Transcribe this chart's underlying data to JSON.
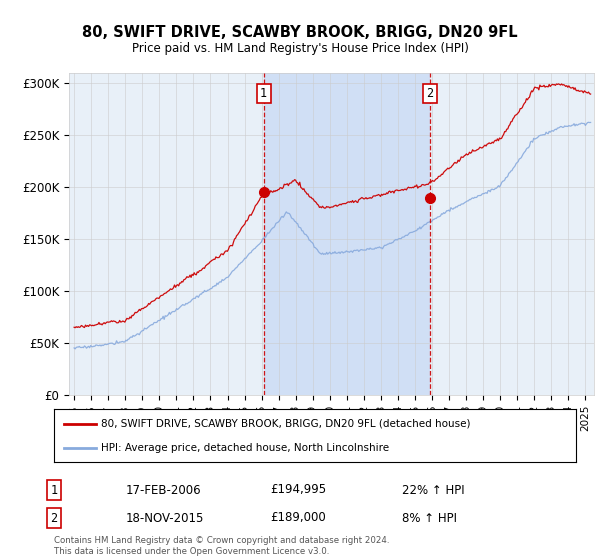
{
  "title": "80, SWIFT DRIVE, SCAWBY BROOK, BRIGG, DN20 9FL",
  "subtitle": "Price paid vs. HM Land Registry's House Price Index (HPI)",
  "ylabel_ticks": [
    "£0",
    "£50K",
    "£100K",
    "£150K",
    "£200K",
    "£250K",
    "£300K"
  ],
  "ytick_vals": [
    0,
    50000,
    100000,
    150000,
    200000,
    250000,
    300000
  ],
  "ylim": [
    0,
    310000
  ],
  "xlim_start": 1994.7,
  "xlim_end": 2025.5,
  "sale1_date": 2006.12,
  "sale1_price": 194995,
  "sale1_label": "1",
  "sale1_date_str": "17-FEB-2006",
  "sale1_price_str": "£194,995",
  "sale1_hpi_str": "22% ↑ HPI",
  "sale2_date": 2015.88,
  "sale2_price": 189000,
  "sale2_label": "2",
  "sale2_date_str": "18-NOV-2015",
  "sale2_price_str": "£189,000",
  "sale2_hpi_str": "8% ↑ HPI",
  "legend_line1": "80, SWIFT DRIVE, SCAWBY BROOK, BRIGG, DN20 9FL (detached house)",
  "legend_line2": "HPI: Average price, detached house, North Lincolnshire",
  "footer": "Contains HM Land Registry data © Crown copyright and database right 2024.\nThis data is licensed under the Open Government Licence v3.0.",
  "line_color_red": "#cc0000",
  "line_color_blue": "#88aadd",
  "shade_color": "#ccddf5",
  "bg_color": "#e8f0f8",
  "grid_color": "#cccccc",
  "sale_marker_color": "#cc0000"
}
